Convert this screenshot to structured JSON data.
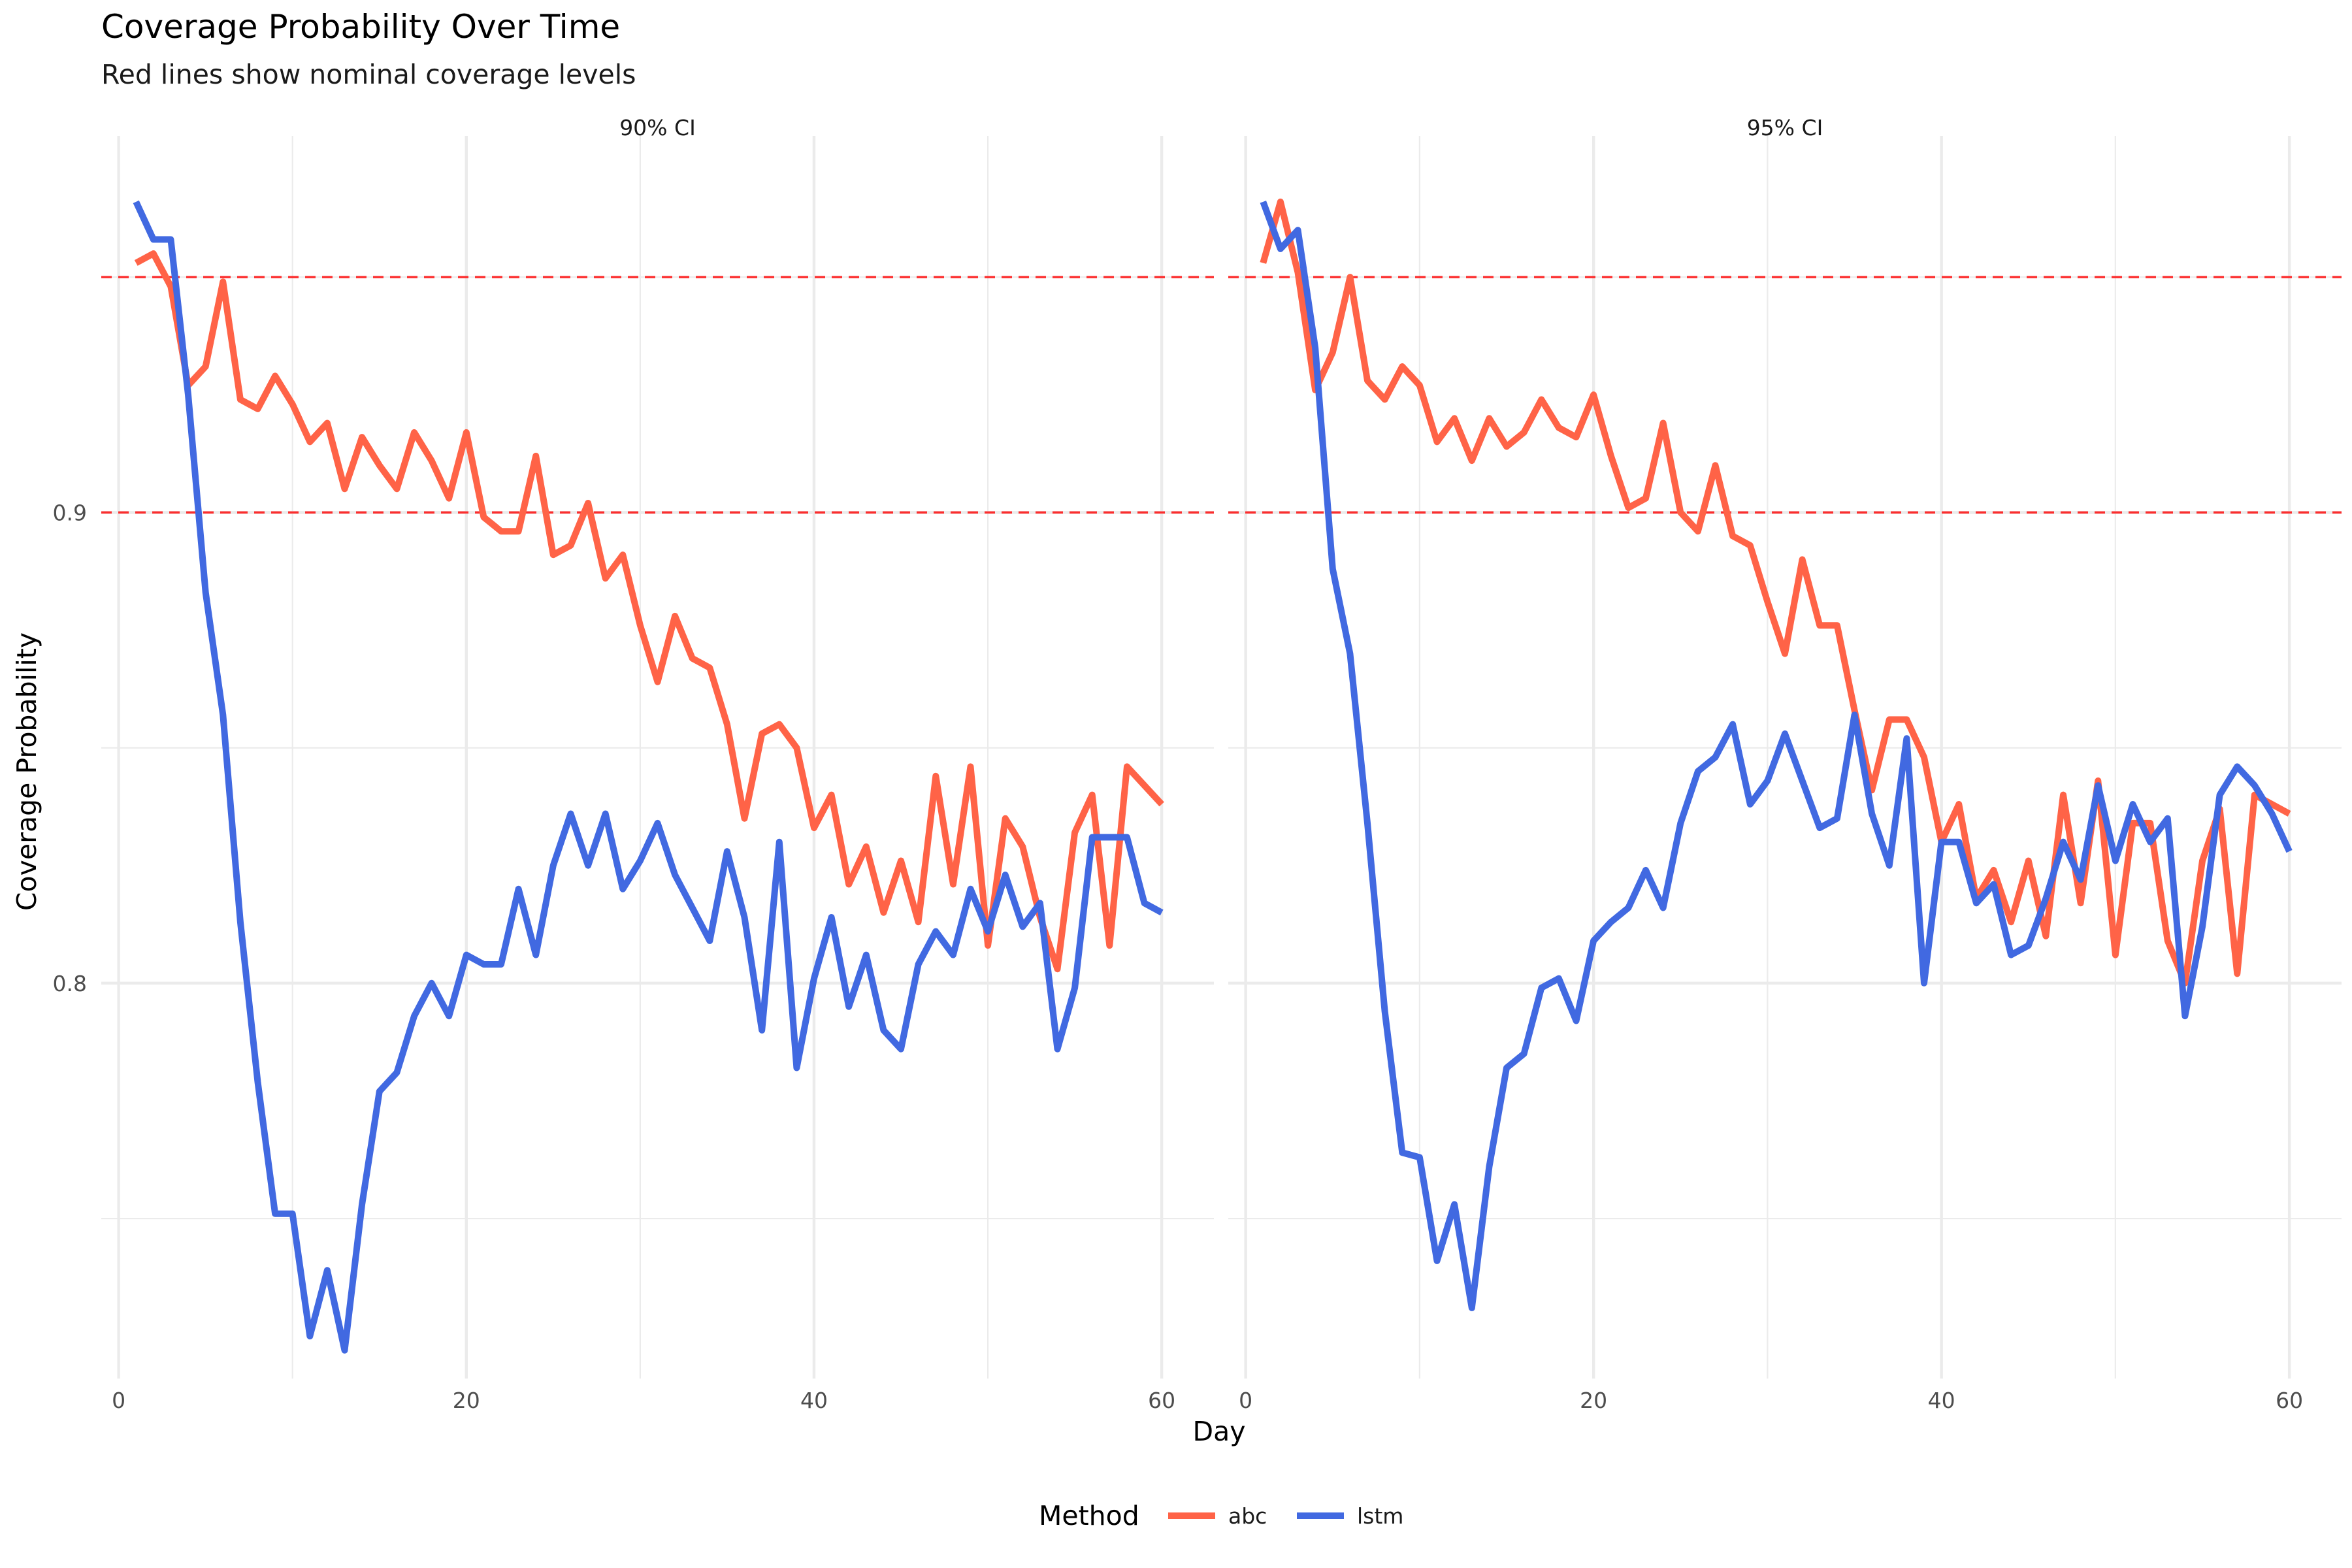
{
  "chart_data": {
    "type": "line",
    "title": "Coverage Probability Over Time",
    "subtitle": "Red lines show nominal coverage levels",
    "xlabel": "Day",
    "ylabel": "Coverage Probability",
    "xlim": [
      -1,
      63
    ],
    "ylim": [
      0.716,
      0.98
    ],
    "x_ticks": [
      0,
      20,
      40,
      60
    ],
    "y_ticks": [
      0.8,
      0.9
    ],
    "reference_lines": [
      0.9,
      0.95
    ],
    "reference_color": "#FF0000",
    "grid": true,
    "legend": {
      "title": "Method",
      "position": "bottom",
      "entries": [
        {
          "label": "abc",
          "color": "#FF6347"
        },
        {
          "label": "lstm",
          "color": "#4169E1"
        }
      ]
    },
    "panels": [
      {
        "label": "90% CI",
        "series": [
          {
            "name": "abc",
            "color": "#FF6347",
            "x": [
              1,
              2,
              3,
              4,
              5,
              6,
              7,
              8,
              9,
              10,
              11,
              12,
              13,
              14,
              15,
              16,
              17,
              18,
              19,
              20,
              21,
              22,
              23,
              24,
              25,
              26,
              27,
              28,
              29,
              30,
              31,
              32,
              33,
              34,
              35,
              36,
              37,
              38,
              39,
              40,
              41,
              42,
              43,
              44,
              45,
              46,
              47,
              48,
              49,
              50,
              51,
              52,
              53,
              54,
              55,
              56,
              57,
              58,
              59,
              60
            ],
            "values": [
              0.953,
              0.955,
              0.948,
              0.927,
              0.931,
              0.949,
              0.924,
              0.922,
              0.929,
              0.923,
              0.915,
              0.919,
              0.905,
              0.916,
              0.91,
              0.905,
              0.917,
              0.911,
              0.903,
              0.917,
              0.899,
              0.896,
              0.896,
              0.912,
              0.891,
              0.893,
              0.902,
              0.886,
              0.891,
              0.876,
              0.864,
              0.878,
              0.869,
              0.867,
              0.855,
              0.835,
              0.853,
              0.855,
              0.85,
              0.833,
              0.84,
              0.821,
              0.829,
              0.815,
              0.826,
              0.813,
              0.844,
              0.821,
              0.846,
              0.808,
              0.835,
              0.829,
              0.814,
              0.803,
              0.832,
              0.84,
              0.808,
              0.846,
              0.842,
              0.838
            ]
          },
          {
            "name": "lstm",
            "color": "#4169E1",
            "x": [
              1,
              2,
              3,
              4,
              5,
              6,
              7,
              8,
              9,
              10,
              11,
              12,
              13,
              14,
              15,
              16,
              17,
              18,
              19,
              20,
              21,
              22,
              23,
              24,
              25,
              26,
              27,
              28,
              29,
              30,
              31,
              32,
              33,
              34,
              35,
              36,
              37,
              38,
              39,
              40,
              41,
              42,
              43,
              44,
              45,
              46,
              47,
              48,
              49,
              50,
              51,
              52,
              53,
              54,
              55,
              56,
              57,
              58,
              59,
              60
            ],
            "values": [
              0.966,
              0.958,
              0.958,
              0.925,
              0.883,
              0.857,
              0.813,
              0.779,
              0.751,
              0.751,
              0.725,
              0.739,
              0.722,
              0.753,
              0.777,
              0.781,
              0.793,
              0.8,
              0.793,
              0.806,
              0.804,
              0.804,
              0.82,
              0.806,
              0.825,
              0.836,
              0.825,
              0.836,
              0.82,
              0.826,
              0.834,
              0.823,
              0.816,
              0.809,
              0.828,
              0.814,
              0.79,
              0.83,
              0.782,
              0.801,
              0.814,
              0.795,
              0.806,
              0.79,
              0.786,
              0.804,
              0.811,
              0.806,
              0.82,
              0.811,
              0.823,
              0.812,
              0.817,
              0.786,
              0.799,
              0.831,
              0.831,
              0.831,
              0.817,
              0.815
            ]
          }
        ]
      },
      {
        "label": "95% CI",
        "series": [
          {
            "name": "abc",
            "color": "#FF6347",
            "x": [
              1,
              2,
              3,
              4,
              5,
              6,
              7,
              8,
              9,
              10,
              11,
              12,
              13,
              14,
              15,
              16,
              17,
              18,
              19,
              20,
              21,
              22,
              23,
              24,
              25,
              26,
              27,
              28,
              29,
              30,
              31,
              32,
              33,
              34,
              35,
              36,
              37,
              38,
              39,
              40,
              41,
              42,
              43,
              44,
              45,
              46,
              47,
              48,
              49,
              50,
              51,
              52,
              53,
              54,
              55,
              56,
              57,
              58,
              59,
              60
            ],
            "values": [
              0.953,
              0.966,
              0.951,
              0.926,
              0.934,
              0.95,
              0.928,
              0.924,
              0.931,
              0.927,
              0.915,
              0.92,
              0.911,
              0.92,
              0.914,
              0.917,
              0.924,
              0.918,
              0.916,
              0.925,
              0.912,
              0.901,
              0.903,
              0.919,
              0.9,
              0.896,
              0.91,
              0.895,
              0.893,
              0.881,
              0.87,
              0.89,
              0.876,
              0.876,
              0.858,
              0.841,
              0.856,
              0.856,
              0.848,
              0.83,
              0.838,
              0.818,
              0.824,
              0.813,
              0.826,
              0.81,
              0.84,
              0.817,
              0.843,
              0.806,
              0.834,
              0.834,
              0.809,
              0.8,
              0.826,
              0.837,
              0.802,
              0.84,
              0.838,
              0.836
            ]
          },
          {
            "name": "lstm",
            "color": "#4169E1",
            "x": [
              1,
              2,
              3,
              4,
              5,
              6,
              7,
              8,
              9,
              10,
              11,
              12,
              13,
              14,
              15,
              16,
              17,
              18,
              19,
              20,
              21,
              22,
              23,
              24,
              25,
              26,
              27,
              28,
              29,
              30,
              31,
              32,
              33,
              34,
              35,
              36,
              37,
              38,
              39,
              40,
              41,
              42,
              43,
              44,
              45,
              46,
              47,
              48,
              49,
              50,
              51,
              52,
              53,
              54,
              55,
              56,
              57,
              58,
              59,
              60
            ],
            "values": [
              0.966,
              0.956,
              0.96,
              0.935,
              0.888,
              0.87,
              0.834,
              0.794,
              0.764,
              0.763,
              0.741,
              0.753,
              0.731,
              0.761,
              0.782,
              0.785,
              0.799,
              0.801,
              0.792,
              0.809,
              0.813,
              0.816,
              0.824,
              0.816,
              0.834,
              0.845,
              0.848,
              0.855,
              0.838,
              0.843,
              0.853,
              0.843,
              0.833,
              0.835,
              0.857,
              0.836,
              0.825,
              0.852,
              0.8,
              0.83,
              0.83,
              0.817,
              0.821,
              0.806,
              0.808,
              0.818,
              0.83,
              0.822,
              0.842,
              0.826,
              0.838,
              0.83,
              0.835,
              0.793,
              0.812,
              0.84,
              0.846,
              0.842,
              0.836,
              0.828
            ]
          }
        ]
      }
    ]
  }
}
